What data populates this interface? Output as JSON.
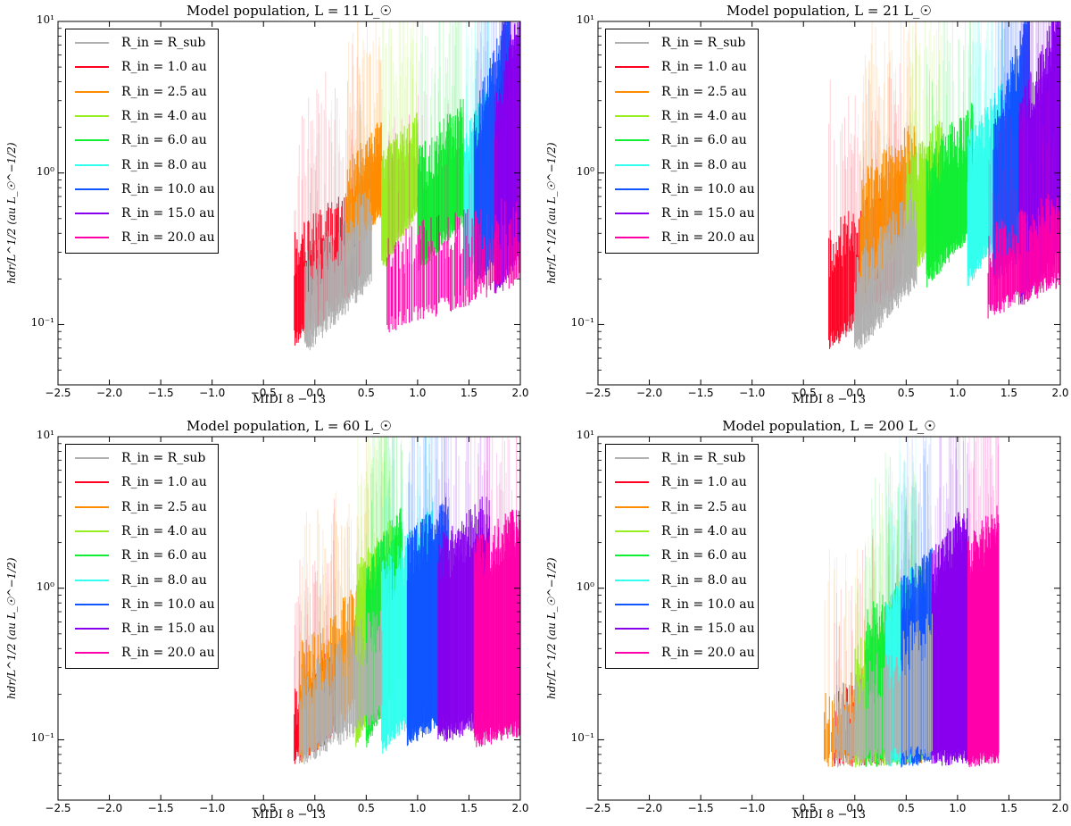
{
  "legend": [
    {
      "label": "R_in = R_sub",
      "color": "#b0b0b0"
    },
    {
      "label": "R_in = 1.0 au",
      "color": "#ff0022"
    },
    {
      "label": "R_in = 2.5 au",
      "color": "#ff8c00"
    },
    {
      "label": "R_in = 4.0 au",
      "color": "#99ee22"
    },
    {
      "label": "R_in = 6.0 au",
      "color": "#11ee33"
    },
    {
      "label": "R_in = 8.0 au",
      "color": "#33ffee"
    },
    {
      "label": "R_in = 10.0 au",
      "color": "#1155ff"
    },
    {
      "label": "R_in = 15.0 au",
      "color": "#8800ee"
    },
    {
      "label": "R_in = 20.0 au",
      "color": "#ff00aa"
    }
  ],
  "chart_data": [
    {
      "type": "line",
      "title": "Model population, L = 11 L_☉",
      "xlabel": "MIDI 8 − 13",
      "ylabel": "hdr/L^1/2 (au L_☉^−1/2)",
      "xlim": [
        -2.5,
        2.0
      ],
      "ylim": [
        0.04,
        10
      ],
      "yscale": "log",
      "xticks": [
        "−2.5",
        "−2.0",
        "−1.5",
        "−1.0",
        "−0.5",
        "0.0",
        "0.5",
        "1.0",
        "1.5",
        "2.0"
      ],
      "yticks": [
        "10⁻¹",
        "10⁰",
        "10¹"
      ],
      "legend_position": "upper left",
      "grid": false,
      "series": [
        {
          "label_index": 1,
          "x_range": [
            -0.2,
            0.45
          ],
          "y_bottom": [
            0.08,
            0.2
          ],
          "y_top": [
            0.3,
            0.6
          ]
        },
        {
          "label_index": 2,
          "x_range": [
            0.3,
            0.65
          ],
          "y_bottom": [
            0.25,
            0.6
          ],
          "y_top": [
            0.8,
            1.6
          ]
        },
        {
          "label_index": 3,
          "x_range": [
            0.65,
            1.0
          ],
          "y_bottom": [
            0.25,
            0.6
          ],
          "y_top": [
            1.0,
            1.7
          ]
        },
        {
          "label_index": 4,
          "x_range": [
            1.0,
            1.45
          ],
          "y_bottom": [
            0.25,
            0.5
          ],
          "y_top": [
            1.0,
            2.2
          ]
        },
        {
          "label_index": 5,
          "x_range": [
            1.45,
            1.7
          ],
          "y_bottom": [
            0.2,
            0.5
          ],
          "y_top": [
            1.2,
            3.0
          ]
        },
        {
          "label_index": 6,
          "x_range": [
            1.55,
            1.9
          ],
          "y_bottom": [
            0.2,
            0.35
          ],
          "y_top": [
            1.8,
            10.0
          ]
        },
        {
          "label_index": 7,
          "x_range": [
            1.75,
            2.0
          ],
          "y_bottom": [
            0.18,
            0.3
          ],
          "y_top": [
            2.0,
            10.0
          ]
        },
        {
          "label_index": 8,
          "x_range": [
            0.7,
            2.0
          ],
          "y_bottom": [
            0.1,
            0.2
          ],
          "y_top": [
            0.3,
            0.5
          ]
        },
        {
          "label_index": 0,
          "x_range": [
            -0.1,
            0.55
          ],
          "y_bottom": [
            0.07,
            0.2
          ],
          "y_top": [
            0.2,
            0.6
          ]
        }
      ]
    },
    {
      "type": "line",
      "title": "Model population, L = 21 L_☉",
      "xlabel": "MIDI 8 − 13",
      "ylabel": "hdr/L^1/2 (au L_☉^−1/2)",
      "xlim": [
        -2.5,
        2.0
      ],
      "ylim": [
        0.04,
        10
      ],
      "yscale": "log",
      "xticks": [
        "−2.5",
        "−2.0",
        "−1.5",
        "−1.0",
        "−0.5",
        "0.0",
        "0.5",
        "1.0",
        "1.5",
        "2.0"
      ],
      "yticks": [
        "10⁻¹",
        "10⁰",
        "10¹"
      ],
      "legend_position": "upper left",
      "grid": false,
      "series": [
        {
          "label_index": 1,
          "x_range": [
            -0.25,
            0.45
          ],
          "y_bottom": [
            0.075,
            0.2
          ],
          "y_top": [
            0.3,
            0.7
          ]
        },
        {
          "label_index": 2,
          "x_range": [
            0.05,
            0.6
          ],
          "y_bottom": [
            0.15,
            0.4
          ],
          "y_top": [
            0.7,
            1.6
          ]
        },
        {
          "label_index": 3,
          "x_range": [
            0.5,
            0.85
          ],
          "y_bottom": [
            0.2,
            0.45
          ],
          "y_top": [
            0.9,
            1.6
          ]
        },
        {
          "label_index": 4,
          "x_range": [
            0.7,
            1.15
          ],
          "y_bottom": [
            0.2,
            0.45
          ],
          "y_top": [
            1.0,
            2.0
          ]
        },
        {
          "label_index": 5,
          "x_range": [
            1.1,
            1.45
          ],
          "y_bottom": [
            0.2,
            0.45
          ],
          "y_top": [
            1.2,
            3.0
          ]
        },
        {
          "label_index": 6,
          "x_range": [
            1.35,
            1.7
          ],
          "y_bottom": [
            0.2,
            0.35
          ],
          "y_top": [
            1.5,
            10.0
          ]
        },
        {
          "label_index": 7,
          "x_range": [
            1.6,
            2.0
          ],
          "y_bottom": [
            0.15,
            0.3
          ],
          "y_top": [
            2.0,
            10.0
          ]
        },
        {
          "label_index": 8,
          "x_range": [
            1.3,
            2.0
          ],
          "y_bottom": [
            0.12,
            0.2
          ],
          "y_top": [
            0.3,
            0.6
          ]
        },
        {
          "label_index": 0,
          "x_range": [
            0.0,
            0.6
          ],
          "y_bottom": [
            0.07,
            0.2
          ],
          "y_top": [
            0.2,
            0.6
          ]
        }
      ]
    },
    {
      "type": "line",
      "title": "Model population, L = 60 L_☉",
      "xlabel": "MIDI 8 − 13",
      "ylabel": "hdr/L^1/2 (au L_☉^−1/2)",
      "xlim": [
        -2.5,
        2.0
      ],
      "ylim": [
        0.04,
        10
      ],
      "yscale": "log",
      "xticks": [
        "−2.5",
        "−2.0",
        "−1.5",
        "−1.0",
        "−0.5",
        "0.0",
        "0.5",
        "1.0",
        "1.5",
        "2.0"
      ],
      "yticks": [
        "10⁻¹",
        "10⁰",
        "10¹"
      ],
      "legend_position": "upper left",
      "grid": false,
      "series": [
        {
          "label_index": 1,
          "x_range": [
            -0.2,
            0.2
          ],
          "y_bottom": [
            0.075,
            0.12
          ],
          "y_top": [
            0.15,
            0.3
          ]
        },
        {
          "label_index": 2,
          "x_range": [
            -0.15,
            0.6
          ],
          "y_bottom": [
            0.075,
            0.25
          ],
          "y_top": [
            0.3,
            1.0
          ]
        },
        {
          "label_index": 3,
          "x_range": [
            0.4,
            0.75
          ],
          "y_bottom": [
            0.1,
            0.3
          ],
          "y_top": [
            1.0,
            2.0
          ]
        },
        {
          "label_index": 4,
          "x_range": [
            0.5,
            0.85
          ],
          "y_bottom": [
            0.1,
            0.3
          ],
          "y_top": [
            1.0,
            2.5
          ]
        },
        {
          "label_index": 5,
          "x_range": [
            0.65,
            1.15
          ],
          "y_bottom": [
            0.09,
            0.2
          ],
          "y_top": [
            1.0,
            2.5
          ]
        },
        {
          "label_index": 6,
          "x_range": [
            0.9,
            1.3
          ],
          "y_bottom": [
            0.1,
            0.15
          ],
          "y_top": [
            1.5,
            3.0
          ]
        },
        {
          "label_index": 7,
          "x_range": [
            1.2,
            1.7
          ],
          "y_bottom": [
            0.1,
            0.15
          ],
          "y_top": [
            1.5,
            3.0
          ]
        },
        {
          "label_index": 8,
          "x_range": [
            1.55,
            2.0
          ],
          "y_bottom": [
            0.1,
            0.12
          ],
          "y_top": [
            1.5,
            2.5
          ]
        },
        {
          "label_index": 0,
          "x_range": [
            -0.15,
            0.65
          ],
          "y_bottom": [
            0.075,
            0.15
          ],
          "y_top": [
            0.2,
            0.55
          ]
        }
      ]
    },
    {
      "type": "line",
      "title": "Model population, L = 200 L_☉",
      "xlabel": "MIDI 8 − 13",
      "ylabel": "hdr/L^1/2 (au L_☉^−1/2)",
      "xlim": [
        -2.5,
        2.0
      ],
      "ylim": [
        0.04,
        10
      ],
      "yscale": "log",
      "xticks": [
        "−2.5",
        "−2.0",
        "−1.5",
        "−1.0",
        "−0.5",
        "0.0",
        "0.5",
        "1.0",
        "1.5",
        "2.0"
      ],
      "yticks": [
        "10⁻¹",
        "10⁰",
        "10¹"
      ],
      "legend_position": "upper left",
      "grid": false,
      "series": [
        {
          "label_index": 1,
          "x_range": [
            -0.2,
            0.5
          ],
          "y_bottom": [
            0.075,
            0.08
          ],
          "y_top": [
            0.15,
            0.3
          ]
        },
        {
          "label_index": 2,
          "x_range": [
            -0.3,
            0.75
          ],
          "y_bottom": [
            0.075,
            0.08
          ],
          "y_top": [
            0.15,
            0.45
          ]
        },
        {
          "label_index": 3,
          "x_range": [
            0.0,
            0.6
          ],
          "y_bottom": [
            0.075,
            0.08
          ],
          "y_top": [
            0.3,
            0.8
          ]
        },
        {
          "label_index": 4,
          "x_range": [
            0.1,
            0.65
          ],
          "y_bottom": [
            0.075,
            0.08
          ],
          "y_top": [
            0.5,
            1.0
          ]
        },
        {
          "label_index": 5,
          "x_range": [
            0.3,
            0.6
          ],
          "y_bottom": [
            0.075,
            0.08
          ],
          "y_top": [
            0.6,
            1.0
          ]
        },
        {
          "label_index": 6,
          "x_range": [
            0.45,
            0.75
          ],
          "y_bottom": [
            0.075,
            0.08
          ],
          "y_top": [
            0.8,
            1.3
          ]
        },
        {
          "label_index": 7,
          "x_range": [
            0.75,
            1.1
          ],
          "y_bottom": [
            0.075,
            0.08
          ],
          "y_top": [
            1.2,
            2.6
          ]
        },
        {
          "label_index": 8,
          "x_range": [
            1.1,
            1.4
          ],
          "y_bottom": [
            0.075,
            0.08
          ],
          "y_top": [
            1.5,
            2.5
          ]
        },
        {
          "label_index": 0,
          "x_range": [
            -0.2,
            0.75
          ],
          "y_bottom": [
            0.075,
            0.08
          ],
          "y_top": [
            0.15,
            0.55
          ]
        }
      ]
    }
  ]
}
